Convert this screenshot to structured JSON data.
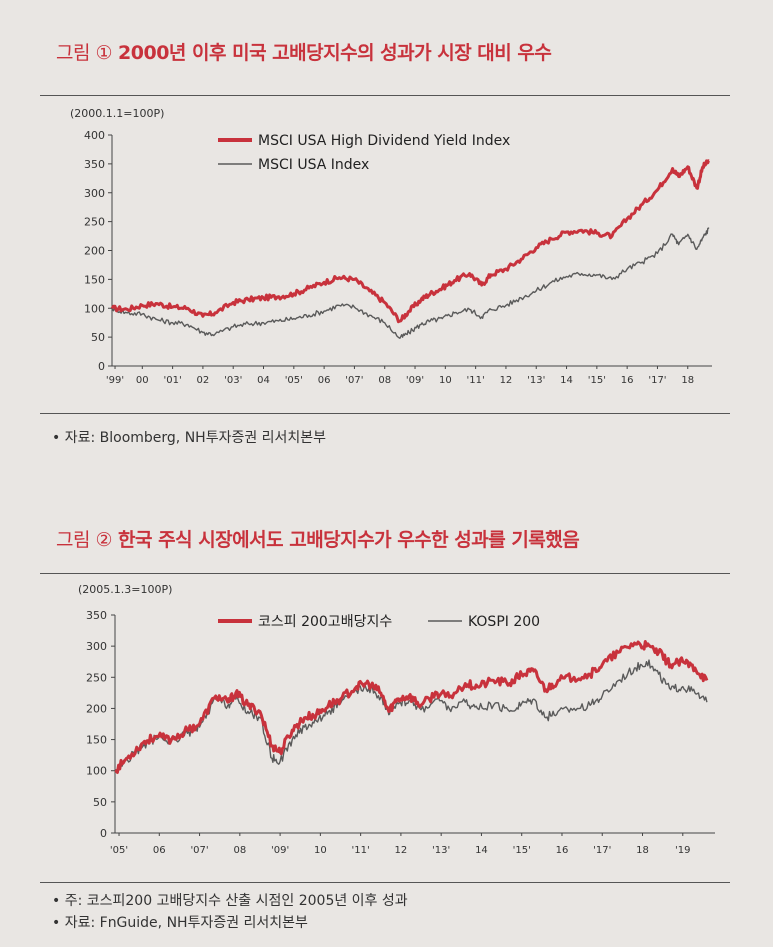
{
  "figure1": {
    "label": "그림 ①",
    "title": "2000년 이후 미국 고배당지수의 성과가 시장 대비 우수",
    "unit": "(2000.1.1=100P)",
    "notes": [
      "• 자료: Bloomberg, NH투자증권 리서치본부"
    ]
  },
  "figure2": {
    "label": "그림 ②",
    "title": "한국 주식 시장에서도 고배당지수가 우수한 성과를 기록했음",
    "unit": "(2005.1.3=100P)",
    "notes": [
      "• 주: 코스피200 고배당지수 산출 시점인 2005년 이후 성과",
      "• 자료: FnGuide, NH투자증권 리서치본부"
    ]
  },
  "chart_data": [
    {
      "type": "line",
      "ylim": [
        0,
        400
      ],
      "yticks": [
        0,
        50,
        100,
        150,
        200,
        250,
        300,
        350,
        400
      ],
      "xlim": [
        1999.5,
        2019.3
      ],
      "xticks": [
        {
          "x": 1999.6,
          "label": "'99'"
        },
        {
          "x": 2000.5,
          "label": "00"
        },
        {
          "x": 2001.5,
          "label": "'01'"
        },
        {
          "x": 2002.5,
          "label": "02"
        },
        {
          "x": 2003.5,
          "label": "'03'"
        },
        {
          "x": 2004.5,
          "label": "04"
        },
        {
          "x": 2005.5,
          "label": "'05'"
        },
        {
          "x": 2006.5,
          "label": "06"
        },
        {
          "x": 2007.5,
          "label": "'07'"
        },
        {
          "x": 2008.5,
          "label": "08"
        },
        {
          "x": 2009.5,
          "label": "'09'"
        },
        {
          "x": 2010.5,
          "label": "10"
        },
        {
          "x": 2011.5,
          "label": "'11'"
        },
        {
          "x": 2012.5,
          "label": "12"
        },
        {
          "x": 2013.5,
          "label": "'13'"
        },
        {
          "x": 2014.5,
          "label": "14"
        },
        {
          "x": 2015.5,
          "label": "'15'"
        },
        {
          "x": 2016.5,
          "label": "16"
        },
        {
          "x": 2017.5,
          "label": "'17'"
        },
        {
          "x": 2018.5,
          "label": "18"
        }
      ],
      "legend_position": "top-center",
      "series": [
        {
          "name": "MSCI USA High Dividend Yield Index",
          "color": "#c8323c",
          "points": [
            [
              1999.5,
              100
            ],
            [
              2000.0,
              98
            ],
            [
              2000.5,
              105
            ],
            [
              2001.0,
              108
            ],
            [
              2001.5,
              102
            ],
            [
              2002.0,
              100
            ],
            [
              2002.5,
              86
            ],
            [
              2002.9,
              92
            ],
            [
              2003.5,
              110
            ],
            [
              2004.0,
              115
            ],
            [
              2004.5,
              118
            ],
            [
              2005.0,
              120
            ],
            [
              2005.5,
              125
            ],
            [
              2006.0,
              135
            ],
            [
              2006.5,
              145
            ],
            [
              2007.0,
              153
            ],
            [
              2007.5,
              150
            ],
            [
              2008.0,
              130
            ],
            [
              2008.5,
              110
            ],
            [
              2009.0,
              78
            ],
            [
              2009.3,
              95
            ],
            [
              2009.7,
              115
            ],
            [
              2010.0,
              125
            ],
            [
              2010.4,
              135
            ],
            [
              2010.8,
              148
            ],
            [
              2011.3,
              160
            ],
            [
              2011.7,
              140
            ],
            [
              2012.0,
              158
            ],
            [
              2012.5,
              168
            ],
            [
              2013.0,
              185
            ],
            [
              2013.5,
              205
            ],
            [
              2014.0,
              220
            ],
            [
              2014.5,
              232
            ],
            [
              2015.0,
              235
            ],
            [
              2015.5,
              230
            ],
            [
              2016.0,
              225
            ],
            [
              2016.5,
              255
            ],
            [
              2017.0,
              280
            ],
            [
              2017.5,
              305
            ],
            [
              2018.0,
              342
            ],
            [
              2018.2,
              328
            ],
            [
              2018.5,
              345
            ],
            [
              2018.8,
              308
            ],
            [
              2019.0,
              345
            ],
            [
              2019.2,
              355
            ]
          ]
        },
        {
          "name": "MSCI USA Index",
          "color": "#5a5a5a",
          "points": [
            [
              1999.5,
              100
            ],
            [
              2000.0,
              92
            ],
            [
              2000.5,
              90
            ],
            [
              2001.0,
              80
            ],
            [
              2001.5,
              75
            ],
            [
              2002.0,
              72
            ],
            [
              2002.5,
              58
            ],
            [
              2002.9,
              55
            ],
            [
              2003.5,
              68
            ],
            [
              2004.0,
              73
            ],
            [
              2004.5,
              75
            ],
            [
              2005.0,
              78
            ],
            [
              2005.5,
              82
            ],
            [
              2006.0,
              88
            ],
            [
              2006.5,
              95
            ],
            [
              2007.0,
              105
            ],
            [
              2007.5,
              102
            ],
            [
              2008.0,
              88
            ],
            [
              2008.5,
              75
            ],
            [
              2009.0,
              48
            ],
            [
              2009.3,
              58
            ],
            [
              2009.7,
              72
            ],
            [
              2010.0,
              78
            ],
            [
              2010.4,
              82
            ],
            [
              2010.8,
              92
            ],
            [
              2011.3,
              98
            ],
            [
              2011.7,
              85
            ],
            [
              2012.0,
              98
            ],
            [
              2012.5,
              105
            ],
            [
              2013.0,
              118
            ],
            [
              2013.5,
              130
            ],
            [
              2014.0,
              145
            ],
            [
              2014.5,
              155
            ],
            [
              2015.0,
              160
            ],
            [
              2015.5,
              158
            ],
            [
              2016.0,
              150
            ],
            [
              2016.5,
              168
            ],
            [
              2017.0,
              180
            ],
            [
              2017.5,
              195
            ],
            [
              2018.0,
              228
            ],
            [
              2018.2,
              210
            ],
            [
              2018.5,
              228
            ],
            [
              2018.8,
              202
            ],
            [
              2019.0,
              222
            ],
            [
              2019.2,
              238
            ]
          ]
        }
      ]
    },
    {
      "type": "line",
      "ylim": [
        0,
        350
      ],
      "yticks": [
        0,
        50,
        100,
        150,
        200,
        250,
        300,
        350
      ],
      "xlim": [
        2005.0,
        2019.9
      ],
      "xticks": [
        {
          "x": 2005.1,
          "label": "'05'"
        },
        {
          "x": 2006.1,
          "label": "06"
        },
        {
          "x": 2007.1,
          "label": "'07'"
        },
        {
          "x": 2008.1,
          "label": "08"
        },
        {
          "x": 2009.1,
          "label": "'09'"
        },
        {
          "x": 2010.1,
          "label": "10"
        },
        {
          "x": 2011.1,
          "label": "'11'"
        },
        {
          "x": 2012.1,
          "label": "12"
        },
        {
          "x": 2013.1,
          "label": "'13'"
        },
        {
          "x": 2014.1,
          "label": "14"
        },
        {
          "x": 2015.1,
          "label": "'15'"
        },
        {
          "x": 2016.1,
          "label": "16"
        },
        {
          "x": 2017.1,
          "label": "'17'"
        },
        {
          "x": 2018.1,
          "label": "18"
        },
        {
          "x": 2019.1,
          "label": "'19"
        }
      ],
      "legend_position": "top-center",
      "series": [
        {
          "name": "코스피 200고배당지수",
          "color": "#c8323c",
          "points": [
            [
              2005.0,
              100
            ],
            [
              2005.3,
              120
            ],
            [
              2005.7,
              145
            ],
            [
              2006.0,
              155
            ],
            [
              2006.4,
              150
            ],
            [
              2006.8,
              165
            ],
            [
              2007.1,
              175
            ],
            [
              2007.5,
              220
            ],
            [
              2007.8,
              210
            ],
            [
              2008.0,
              225
            ],
            [
              2008.3,
              205
            ],
            [
              2008.6,
              195
            ],
            [
              2008.9,
              140
            ],
            [
              2009.1,
              130
            ],
            [
              2009.4,
              165
            ],
            [
              2009.7,
              185
            ],
            [
              2010.0,
              190
            ],
            [
              2010.3,
              205
            ],
            [
              2010.6,
              215
            ],
            [
              2011.0,
              235
            ],
            [
              2011.3,
              240
            ],
            [
              2011.6,
              225
            ],
            [
              2011.8,
              195
            ],
            [
              2012.0,
              215
            ],
            [
              2012.3,
              220
            ],
            [
              2012.6,
              205
            ],
            [
              2013.0,
              225
            ],
            [
              2013.3,
              218
            ],
            [
              2013.7,
              240
            ],
            [
              2014.0,
              235
            ],
            [
              2014.4,
              245
            ],
            [
              2014.8,
              240
            ],
            [
              2015.1,
              255
            ],
            [
              2015.4,
              260
            ],
            [
              2015.7,
              230
            ],
            [
              2016.0,
              245
            ],
            [
              2016.4,
              250
            ],
            [
              2016.8,
              255
            ],
            [
              2017.1,
              270
            ],
            [
              2017.5,
              290
            ],
            [
              2017.9,
              305
            ],
            [
              2018.2,
              300
            ],
            [
              2018.5,
              290
            ],
            [
              2018.8,
              270
            ],
            [
              2019.1,
              275
            ],
            [
              2019.4,
              265
            ],
            [
              2019.7,
              245
            ]
          ]
        },
        {
          "name": "KOSPI 200",
          "color": "#5a5a5a",
          "points": [
            [
              2005.0,
              100
            ],
            [
              2005.3,
              118
            ],
            [
              2005.7,
              140
            ],
            [
              2006.0,
              152
            ],
            [
              2006.4,
              148
            ],
            [
              2006.8,
              160
            ],
            [
              2007.1,
              170
            ],
            [
              2007.5,
              215
            ],
            [
              2007.8,
              205
            ],
            [
              2008.0,
              215
            ],
            [
              2008.3,
              195
            ],
            [
              2008.6,
              185
            ],
            [
              2008.9,
              120
            ],
            [
              2009.1,
              115
            ],
            [
              2009.4,
              150
            ],
            [
              2009.7,
              170
            ],
            [
              2010.0,
              180
            ],
            [
              2010.3,
              195
            ],
            [
              2010.6,
              208
            ],
            [
              2011.0,
              228
            ],
            [
              2011.3,
              232
            ],
            [
              2011.6,
              218
            ],
            [
              2011.8,
              190
            ],
            [
              2012.0,
              210
            ],
            [
              2012.3,
              212
            ],
            [
              2012.6,
              198
            ],
            [
              2013.0,
              215
            ],
            [
              2013.3,
              200
            ],
            [
              2013.7,
              210
            ],
            [
              2014.0,
              200
            ],
            [
              2014.4,
              205
            ],
            [
              2014.8,
              195
            ],
            [
              2015.1,
              208
            ],
            [
              2015.4,
              215
            ],
            [
              2015.7,
              185
            ],
            [
              2016.0,
              195
            ],
            [
              2016.4,
              200
            ],
            [
              2016.8,
              205
            ],
            [
              2017.1,
              220
            ],
            [
              2017.5,
              245
            ],
            [
              2017.9,
              265
            ],
            [
              2018.2,
              275
            ],
            [
              2018.5,
              255
            ],
            [
              2018.8,
              230
            ],
            [
              2019.1,
              235
            ],
            [
              2019.4,
              225
            ],
            [
              2019.7,
              210
            ]
          ]
        }
      ]
    }
  ]
}
